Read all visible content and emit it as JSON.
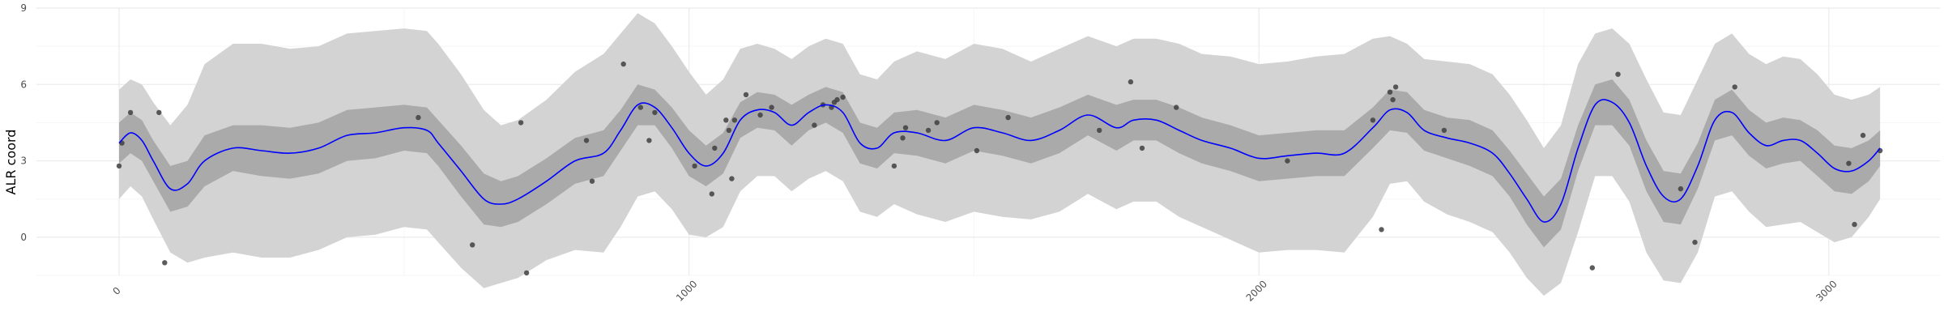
{
  "chart_data": {
    "type": "line",
    "title": "",
    "xlabel": "",
    "ylabel": "ALR coord",
    "xlim": [
      -145,
      3195
    ],
    "ylim": [
      -1.5,
      9
    ],
    "x_ticks": [
      0,
      1000,
      2000,
      3000
    ],
    "x_tick_labels": [
      "0",
      "1000",
      "2000",
      "3000"
    ],
    "y_ticks": [
      0,
      3,
      6,
      9
    ],
    "y_tick_labels": [
      "0",
      "3",
      "6",
      "9"
    ],
    "grid": true,
    "legend": "none",
    "colors": {
      "line": "#0000ff",
      "inner_band": "#aaaaaa",
      "outer_band": "#d3d3d3",
      "points": "#404040",
      "grid_major": "#ebebeb",
      "grid_minor": "#f5f5f5"
    },
    "series": [
      {
        "kind": "line",
        "x": [
          0,
          20,
          40,
          60,
          90,
          120,
          150,
          200,
          250,
          300,
          350,
          400,
          450,
          500,
          540,
          560,
          600,
          640,
          670,
          700,
          750,
          800,
          850,
          880,
          910,
          940,
          970,
          1000,
          1030,
          1060,
          1090,
          1120,
          1150,
          1180,
          1210,
          1240,
          1270,
          1300,
          1330,
          1360,
          1400,
          1450,
          1500,
          1550,
          1600,
          1650,
          1700,
          1750,
          1780,
          1820,
          1860,
          1900,
          1950,
          2000,
          2050,
          2100,
          2150,
          2200,
          2230,
          2260,
          2290,
          2330,
          2370,
          2410,
          2440,
          2470,
          2500,
          2530,
          2560,
          2590,
          2620,
          2650,
          2680,
          2710,
          2740,
          2770,
          2800,
          2830,
          2860,
          2890,
          2920,
          2950,
          2980,
          3010,
          3040,
          3070,
          3090
        ],
        "y": [
          3.7,
          4.1,
          3.8,
          3.0,
          1.9,
          2.1,
          3.0,
          3.5,
          3.4,
          3.3,
          3.5,
          4.0,
          4.1,
          4.3,
          4.2,
          3.7,
          2.6,
          1.5,
          1.3,
          1.5,
          2.2,
          3.0,
          3.3,
          4.2,
          5.2,
          5.1,
          4.3,
          3.3,
          2.8,
          3.3,
          4.6,
          5.0,
          4.9,
          4.4,
          4.9,
          5.2,
          4.9,
          3.7,
          3.5,
          4.1,
          4.1,
          3.8,
          4.3,
          4.1,
          3.8,
          4.2,
          4.8,
          4.3,
          4.6,
          4.6,
          4.2,
          3.8,
          3.5,
          3.1,
          3.2,
          3.3,
          3.3,
          4.3,
          5.0,
          4.9,
          4.2,
          3.9,
          3.7,
          3.3,
          2.5,
          1.5,
          0.6,
          1.3,
          3.5,
          5.2,
          5.3,
          4.5,
          2.8,
          1.6,
          1.5,
          2.8,
          4.6,
          4.9,
          4.1,
          3.6,
          3.8,
          3.8,
          3.3,
          2.7,
          2.6,
          3.0,
          3.5
        ]
      },
      {
        "kind": "band_inner",
        "x": [
          0,
          20,
          40,
          60,
          90,
          120,
          150,
          200,
          250,
          300,
          350,
          400,
          450,
          500,
          540,
          560,
          600,
          640,
          670,
          700,
          750,
          800,
          850,
          880,
          910,
          940,
          970,
          1000,
          1030,
          1060,
          1090,
          1120,
          1150,
          1180,
          1210,
          1240,
          1270,
          1300,
          1330,
          1360,
          1400,
          1450,
          1500,
          1550,
          1600,
          1650,
          1700,
          1750,
          1780,
          1820,
          1860,
          1900,
          1950,
          2000,
          2050,
          2100,
          2150,
          2200,
          2230,
          2260,
          2290,
          2330,
          2370,
          2410,
          2440,
          2470,
          2500,
          2530,
          2560,
          2590,
          2620,
          2650,
          2680,
          2710,
          2740,
          2770,
          2800,
          2830,
          2860,
          2890,
          2920,
          2950,
          2980,
          3010,
          3040,
          3070,
          3090
        ],
        "upper": [
          4.5,
          4.9,
          4.6,
          3.8,
          2.8,
          3.0,
          4.0,
          4.4,
          4.4,
          4.3,
          4.5,
          5.0,
          5.1,
          5.2,
          5.1,
          4.6,
          3.6,
          2.5,
          2.2,
          2.4,
          3.1,
          3.9,
          4.2,
          5.0,
          6.0,
          5.8,
          5.1,
          4.2,
          3.6,
          4.1,
          5.3,
          5.7,
          5.6,
          5.2,
          5.6,
          5.9,
          5.7,
          4.5,
          4.3,
          4.9,
          5.0,
          4.7,
          5.2,
          5.0,
          4.7,
          5.1,
          5.6,
          5.2,
          5.4,
          5.4,
          5.1,
          4.7,
          4.4,
          4.0,
          4.1,
          4.2,
          4.2,
          5.1,
          5.8,
          5.7,
          5.0,
          4.7,
          4.6,
          4.2,
          3.4,
          2.5,
          1.6,
          2.3,
          4.4,
          6.0,
          6.2,
          5.4,
          3.8,
          2.6,
          2.5,
          3.7,
          5.4,
          5.8,
          5.0,
          4.5,
          4.7,
          4.6,
          4.2,
          3.6,
          3.5,
          3.8,
          4.2
        ],
        "lower": [
          2.9,
          3.3,
          3.0,
          2.2,
          1.0,
          1.2,
          2.0,
          2.6,
          2.4,
          2.3,
          2.5,
          3.0,
          3.1,
          3.4,
          3.3,
          2.8,
          1.6,
          0.5,
          0.4,
          0.6,
          1.3,
          2.1,
          2.4,
          3.4,
          4.4,
          4.4,
          3.5,
          2.4,
          2.0,
          2.5,
          3.9,
          4.3,
          4.2,
          3.6,
          4.2,
          4.5,
          4.1,
          2.9,
          2.7,
          3.3,
          3.2,
          2.9,
          3.4,
          3.2,
          2.9,
          3.3,
          4.0,
          3.4,
          3.8,
          3.8,
          3.3,
          2.9,
          2.6,
          2.2,
          2.3,
          2.4,
          2.4,
          3.5,
          4.2,
          4.1,
          3.4,
          3.1,
          2.8,
          2.4,
          1.6,
          0.5,
          -0.4,
          0.3,
          2.6,
          4.4,
          4.4,
          3.6,
          1.8,
          0.6,
          0.5,
          1.9,
          3.8,
          4.0,
          3.2,
          2.7,
          2.9,
          3.0,
          2.4,
          1.8,
          1.7,
          2.2,
          2.8
        ]
      },
      {
        "kind": "band_outer",
        "x": [
          0,
          20,
          40,
          60,
          90,
          120,
          150,
          200,
          250,
          300,
          350,
          400,
          450,
          500,
          540,
          560,
          600,
          640,
          670,
          700,
          750,
          800,
          850,
          880,
          910,
          940,
          970,
          1000,
          1030,
          1060,
          1090,
          1120,
          1150,
          1180,
          1210,
          1240,
          1270,
          1300,
          1330,
          1360,
          1400,
          1450,
          1500,
          1550,
          1600,
          1650,
          1700,
          1750,
          1780,
          1820,
          1860,
          1900,
          1950,
          2000,
          2050,
          2100,
          2150,
          2200,
          2230,
          2260,
          2290,
          2330,
          2370,
          2410,
          2440,
          2470,
          2500,
          2530,
          2560,
          2590,
          2620,
          2650,
          2680,
          2710,
          2740,
          2770,
          2800,
          2830,
          2860,
          2890,
          2920,
          2950,
          2980,
          3010,
          3040,
          3070,
          3090
        ],
        "upper": [
          5.8,
          6.2,
          6.0,
          5.3,
          4.4,
          5.2,
          6.8,
          7.6,
          7.6,
          7.4,
          7.5,
          8.0,
          8.1,
          8.2,
          8.1,
          7.6,
          6.4,
          5.0,
          4.4,
          4.6,
          5.4,
          6.5,
          7.2,
          8.0,
          8.8,
          8.4,
          7.5,
          6.5,
          5.6,
          6.2,
          7.4,
          7.6,
          7.4,
          7.0,
          7.5,
          7.8,
          7.6,
          6.4,
          6.2,
          6.9,
          7.3,
          7.0,
          7.6,
          7.4,
          6.9,
          7.4,
          7.9,
          7.5,
          7.8,
          7.8,
          7.6,
          7.2,
          7.1,
          6.8,
          6.9,
          7.1,
          7.2,
          7.8,
          7.9,
          7.6,
          7.0,
          6.9,
          6.8,
          6.4,
          5.6,
          4.6,
          3.5,
          4.4,
          6.8,
          8.0,
          8.2,
          7.6,
          6.2,
          4.9,
          4.8,
          6.2,
          7.6,
          8.0,
          7.2,
          6.8,
          7.1,
          7.0,
          6.4,
          5.6,
          5.4,
          5.6,
          5.9
        ],
        "lower": [
          1.5,
          2.0,
          1.6,
          0.7,
          -0.6,
          -1.0,
          -0.8,
          -0.6,
          -0.8,
          -0.8,
          -0.5,
          0.0,
          0.1,
          0.4,
          0.3,
          -0.2,
          -1.2,
          -2.0,
          -1.8,
          -1.6,
          -0.9,
          -0.5,
          -0.6,
          0.4,
          1.6,
          1.8,
          1.1,
          0.1,
          0.0,
          0.4,
          1.8,
          2.4,
          2.4,
          1.8,
          2.3,
          2.6,
          2.2,
          1.0,
          0.8,
          1.3,
          0.9,
          0.6,
          1.0,
          0.8,
          0.7,
          1.0,
          1.7,
          1.1,
          1.4,
          1.4,
          0.8,
          0.4,
          -0.1,
          -0.6,
          -0.5,
          -0.5,
          -0.6,
          0.8,
          2.1,
          2.2,
          1.4,
          0.9,
          0.6,
          0.2,
          -0.6,
          -1.6,
          -2.3,
          -1.8,
          0.2,
          2.4,
          2.4,
          1.4,
          -0.6,
          -1.7,
          -1.8,
          -0.6,
          1.6,
          1.8,
          1.0,
          0.4,
          0.5,
          0.6,
          0.2,
          -0.2,
          0.0,
          0.8,
          1.5
        ]
      },
      {
        "kind": "scatter",
        "x": [
          0,
          5,
          20,
          70,
          80,
          525,
          620,
          705,
          715,
          820,
          830,
          885,
          915,
          930,
          940,
          1010,
          1040,
          1045,
          1065,
          1070,
          1075,
          1080,
          1100,
          1125,
          1145,
          1220,
          1235,
          1250,
          1255,
          1260,
          1270,
          1360,
          1375,
          1380,
          1420,
          1435,
          1505,
          1560,
          1720,
          1775,
          1795,
          1855,
          2050,
          2200,
          2215,
          2230,
          2235,
          2240,
          2325,
          2585,
          2630,
          2740,
          2765,
          2835,
          3035,
          3045,
          3060,
          3090
        ],
        "y": [
          2.8,
          3.7,
          4.9,
          4.9,
          -1.0,
          4.7,
          -0.3,
          4.5,
          -1.4,
          3.8,
          2.2,
          6.8,
          5.1,
          3.8,
          4.9,
          2.8,
          1.7,
          3.5,
          4.6,
          4.2,
          2.3,
          4.6,
          5.6,
          4.8,
          5.1,
          4.4,
          5.2,
          5.1,
          5.3,
          5.4,
          5.5,
          2.8,
          3.9,
          4.3,
          4.2,
          4.5,
          3.4,
          4.7,
          4.2,
          6.1,
          3.5,
          5.1,
          3.0,
          4.6,
          0.3,
          5.7,
          5.4,
          5.9,
          4.2,
          -1.2,
          6.4,
          1.9,
          -0.2,
          5.9,
          2.9,
          0.5,
          4.0,
          3.4
        ]
      }
    ]
  }
}
